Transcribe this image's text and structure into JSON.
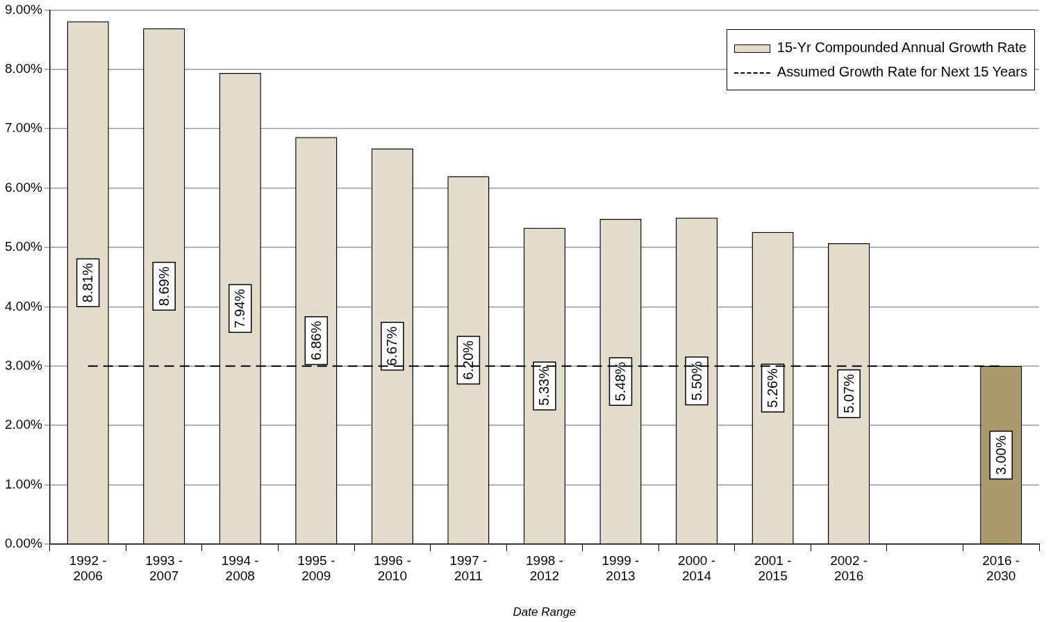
{
  "chart_data": {
    "type": "bar",
    "xlabel": "Date Range",
    "categories": [
      "1992 - 2006",
      "1993 - 2007",
      "1994 - 2008",
      "1995 - 2009",
      "1996 - 2010",
      "1997 - 2011",
      "1998 - 2012",
      "1999 - 2013",
      "2000 - 2014",
      "2001 - 2015",
      "2002 - 2016",
      null,
      "2016 - 2030"
    ],
    "series": [
      {
        "name": "15-Yr Compounded Annual Growth Rate",
        "values": [
          8.81,
          8.69,
          7.94,
          6.86,
          6.67,
          6.2,
          5.33,
          5.48,
          5.5,
          5.26,
          5.07,
          null,
          3.0
        ],
        "colors": [
          "#e2ddcb",
          "#e2ddcb",
          "#e2ddcb",
          "#e2ddcb",
          "#e2ddcb",
          "#e2ddcb",
          "#e2ddcb",
          "#e2ddcb",
          "#e2ddcb",
          "#e2ddcb",
          "#e2ddcb",
          "#e2ddcb",
          "#a89a6a"
        ],
        "value_labels": [
          "8.81%",
          "8.69%",
          "7.94%",
          "6.86%",
          "6.67%",
          "6.20%",
          "5.33%",
          "5.48%",
          "5.50%",
          "5.26%",
          "5.07%",
          null,
          "3.00%"
        ]
      },
      {
        "name": "Assumed Growth Rate for Next 15 Years",
        "type": "line",
        "color": "#000000",
        "line_style": "dashed",
        "marker": "none",
        "values": [
          3,
          3,
          3,
          3,
          3,
          3,
          3,
          3,
          3,
          3,
          3,
          3,
          3
        ]
      }
    ],
    "ylim": [
      0,
      9
    ],
    "yticks": [
      {
        "value": 0,
        "label": "0.00%"
      },
      {
        "value": 1,
        "label": "1.00%"
      },
      {
        "value": 2,
        "label": "2.00%"
      },
      {
        "value": 3,
        "label": "3.00%"
      },
      {
        "value": 4,
        "label": "4.00%"
      },
      {
        "value": 5,
        "label": "5.00%"
      },
      {
        "value": 6,
        "label": "6.00%"
      },
      {
        "value": 7,
        "label": "7.00%"
      },
      {
        "value": 8,
        "label": "8.00%"
      },
      {
        "value": 9,
        "label": "9.00%"
      }
    ],
    "grid": "y",
    "legend": "top right"
  }
}
